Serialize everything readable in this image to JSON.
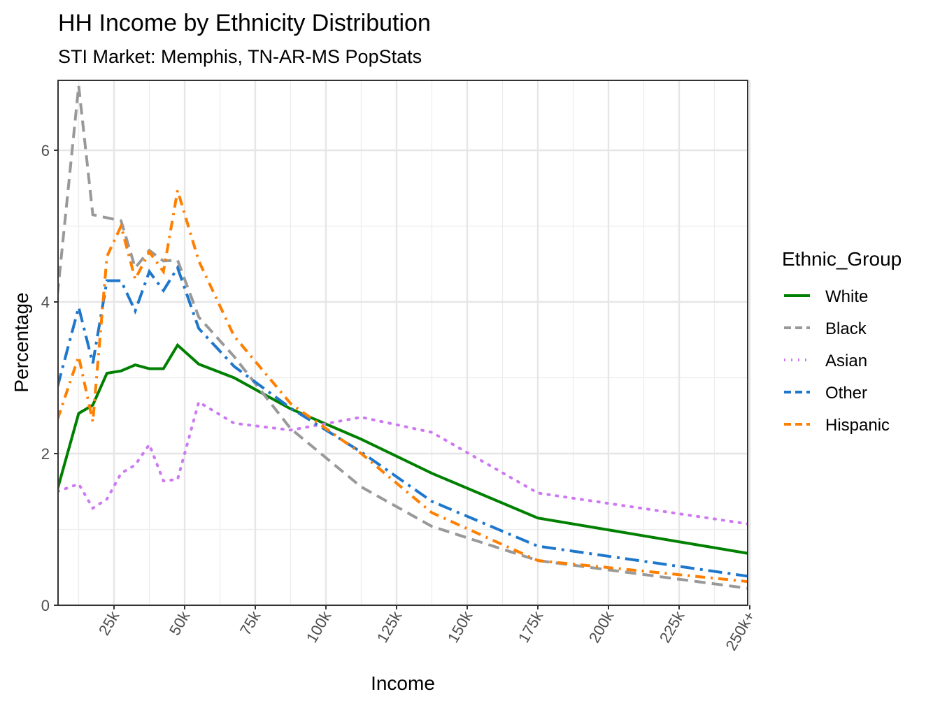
{
  "chart_data": {
    "type": "line",
    "title": "HH Income by Ethnicity Distribution",
    "subtitle": "STI Market: Memphis, TN-AR-MS PopStats",
    "xlabel": "Income",
    "ylabel": "Percentage",
    "xlim": [
      5,
      250
    ],
    "ylim": [
      0,
      6.92
    ],
    "grid": true,
    "x_ticks": [
      25,
      50,
      75,
      100,
      125,
      150,
      175,
      200,
      225,
      250
    ],
    "x_tick_labels": [
      "25k",
      "50k",
      "75k",
      "100k",
      "125k",
      "150k",
      "175k",
      "200k",
      "225k",
      "250k+"
    ],
    "y_ticks": [
      0,
      2,
      4,
      6
    ],
    "y_tick_labels": [
      "0",
      "2",
      "4",
      "6"
    ],
    "legend": {
      "title": "Ethnic_Group",
      "placement": "right"
    },
    "x": [
      5,
      12.5,
      17.5,
      22.5,
      27.5,
      32.5,
      37.5,
      42.5,
      47.5,
      55,
      67.5,
      87.5,
      112.5,
      137.5,
      175,
      250
    ],
    "series": [
      {
        "name": "White",
        "color": "#008000",
        "linetype": "solid",
        "values": [
          1.53,
          2.53,
          2.64,
          3.06,
          3.09,
          3.17,
          3.12,
          3.12,
          3.43,
          3.18,
          3.0,
          2.59,
          2.19,
          1.74,
          1.15,
          0.68
        ]
      },
      {
        "name": "Black",
        "color": "#999999",
        "linetype": "dashed",
        "values": [
          4.1,
          6.85,
          5.15,
          5.11,
          5.07,
          4.45,
          4.68,
          4.54,
          4.55,
          3.8,
          3.28,
          2.33,
          1.56,
          1.04,
          0.59,
          0.22
        ]
      },
      {
        "name": "Asian",
        "color": "#cc79f2",
        "linetype": "dotted",
        "values": [
          1.5,
          1.6,
          1.28,
          1.4,
          1.74,
          1.85,
          2.12,
          1.64,
          1.66,
          2.68,
          2.4,
          2.31,
          2.48,
          2.28,
          1.48,
          1.07
        ]
      },
      {
        "name": "Other",
        "color": "#1f77cc",
        "linetype": "longdash-dot",
        "values": [
          2.88,
          3.93,
          3.19,
          4.28,
          4.28,
          3.88,
          4.4,
          4.15,
          4.45,
          3.65,
          3.15,
          2.6,
          2.02,
          1.37,
          0.78,
          0.38
        ]
      },
      {
        "name": "Hispanic",
        "color": "#ff7f00",
        "linetype": "dotdash",
        "values": [
          2.45,
          3.28,
          2.42,
          4.6,
          5.0,
          4.3,
          4.66,
          4.4,
          5.47,
          4.54,
          3.55,
          2.66,
          2.0,
          1.22,
          0.59,
          0.31
        ]
      }
    ]
  }
}
